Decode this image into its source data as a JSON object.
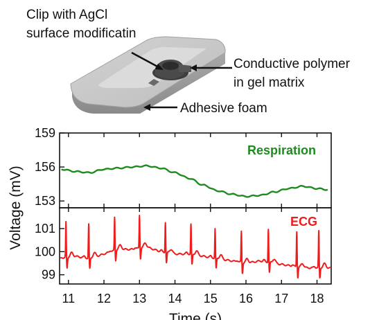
{
  "callouts": {
    "clip_line1": "Clip with AgCl",
    "clip_line2": "surface modificatin",
    "polymer_line1": "Conductive polymer",
    "polymer_line2": "in gel matrix",
    "foam": "Adhesive foam"
  },
  "chart_data": [
    {
      "type": "line",
      "series": [
        {
          "name": "Respiration",
          "color": "#1e8b1e",
          "x": [
            10.8,
            11.2,
            11.6,
            12.0,
            12.4,
            12.8,
            13.2,
            13.6,
            14.0,
            14.4,
            14.8,
            15.2,
            15.6,
            16.0,
            16.4,
            16.8,
            17.2,
            17.6,
            18.0,
            18.3
          ],
          "values": [
            155.8,
            155.6,
            155.5,
            155.8,
            155.9,
            156.0,
            156.1,
            155.9,
            155.5,
            155.0,
            154.4,
            153.9,
            153.6,
            153.4,
            153.5,
            153.8,
            154.1,
            154.3,
            154.1,
            154.0
          ]
        }
      ],
      "ylim": [
        152.4,
        159
      ],
      "yticks": [
        "159",
        "156",
        "153"
      ],
      "ytick_values": [
        159,
        156,
        153
      ],
      "grid": false
    },
    {
      "type": "line",
      "series": [
        {
          "name": "ECG",
          "color": "#ee1c1c",
          "x": [
            10.8,
            11.2,
            11.6,
            12.0,
            12.4,
            12.8,
            13.2,
            13.6,
            14.0,
            14.4,
            14.8,
            15.2,
            15.6,
            16.0,
            16.4,
            16.8,
            17.2,
            17.6,
            18.0,
            18.3
          ],
          "values": [
            99.7,
            99.8,
            99.7,
            99.9,
            100.1,
            100.1,
            100.2,
            100.0,
            99.9,
            99.9,
            99.8,
            99.7,
            99.6,
            99.5,
            99.6,
            99.5,
            99.4,
            99.3,
            99.3,
            99.3
          ],
          "r_peak_times": [
            10.93,
            11.57,
            12.3,
            13.0,
            13.73,
            14.45,
            15.13,
            15.87,
            16.63,
            17.43,
            18.05
          ],
          "r_peak_values": [
            101.3,
            101.2,
            101.5,
            101.6,
            101.3,
            101.2,
            101.0,
            100.9,
            101.0,
            100.9,
            100.9
          ]
        }
      ],
      "ylim": [
        98.6,
        101.9
      ],
      "yticks": [
        "101",
        "100",
        "99"
      ],
      "ytick_values": [
        101,
        100,
        99
      ],
      "grid": false
    }
  ],
  "axes": {
    "ylabel": "Voltage (mV)",
    "xlabel": "Time (s)",
    "xlim": [
      10.75,
      18.4
    ],
    "xticks": [
      "11",
      "12",
      "13",
      "14",
      "15",
      "16",
      "17",
      "18"
    ],
    "xtick_values": [
      11,
      12,
      13,
      14,
      15,
      16,
      17,
      18
    ]
  }
}
